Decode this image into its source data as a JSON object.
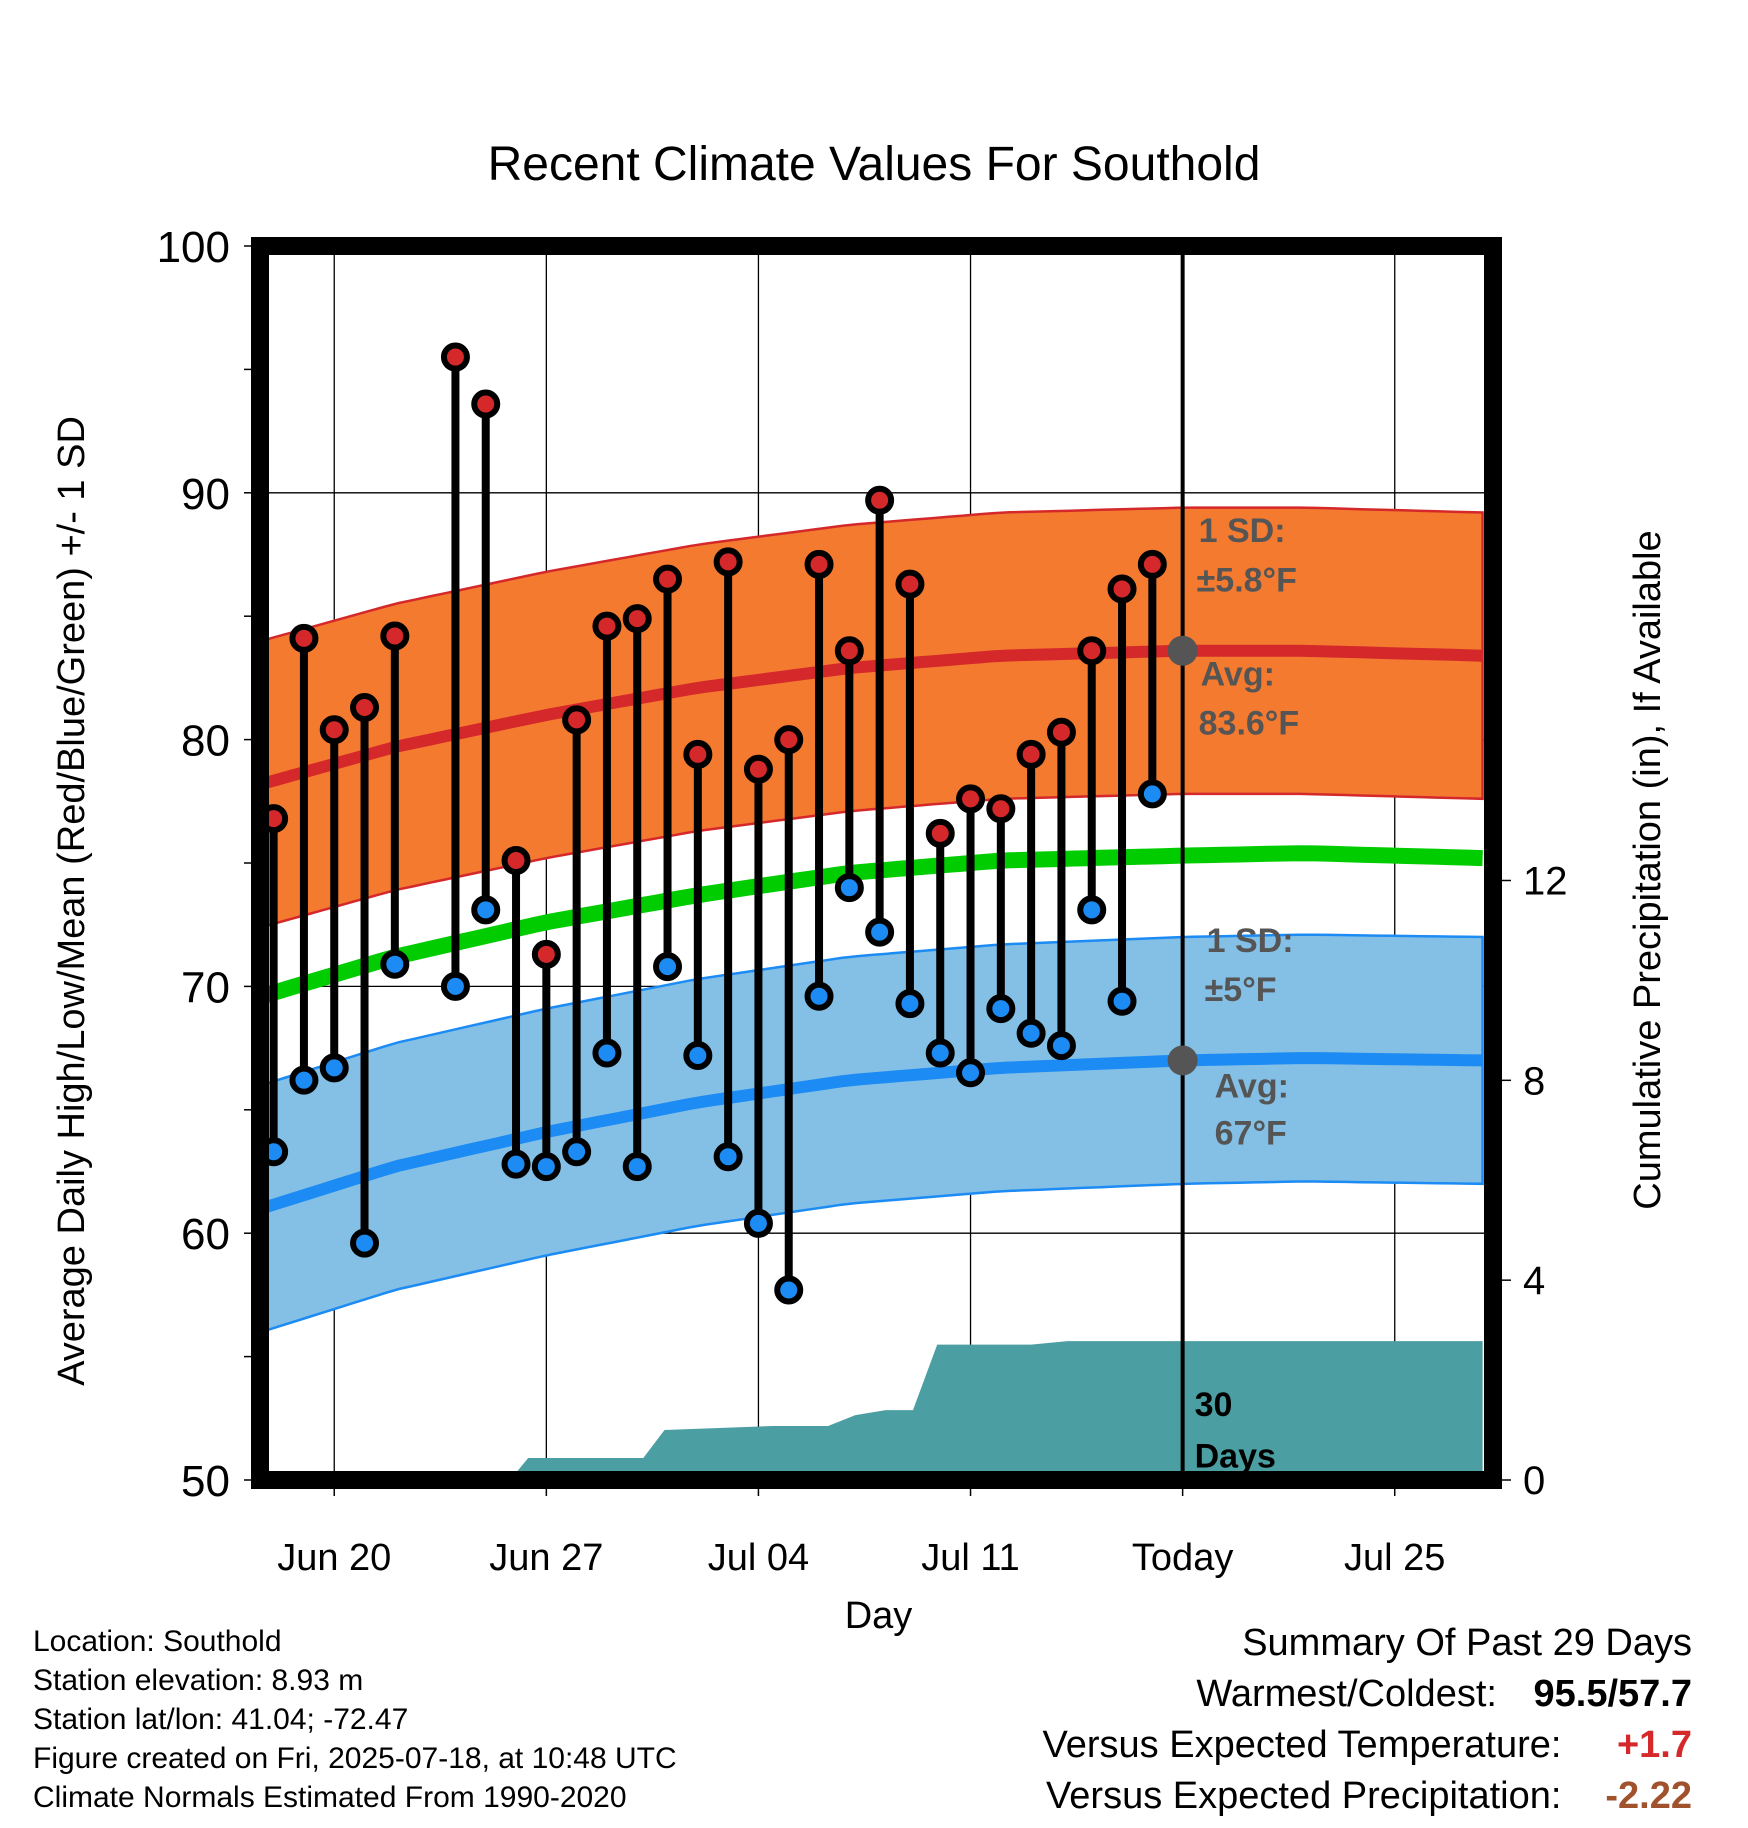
{
  "chart_data": {
    "type": "line",
    "title": "Recent Climate Values For Southold",
    "xlabel": "Day",
    "ylabel": "Average Daily High/Low/Mean (Red/Blue/Green) +/- 1 SD",
    "y2label": "Cumulative Precipitation (in), If Available",
    "ylim": [
      50,
      100
    ],
    "y2lim": [
      0,
      24.7
    ],
    "y_ticks": [
      "50",
      "60",
      "70",
      "80",
      "90",
      "100"
    ],
    "y2_ticks": [
      "0",
      "4",
      "8",
      "12"
    ],
    "x_ticks": [
      {
        "label": "Jun 20",
        "day": 3
      },
      {
        "label": "Jun 27",
        "day": 10
      },
      {
        "label": "Jul 04",
        "day": 17
      },
      {
        "label": "Jul 11",
        "day": 24
      },
      {
        "label": "Today",
        "day": 31
      },
      {
        "label": "Jul 25",
        "day": 38
      }
    ],
    "start_date": "2025-06-17",
    "x_range": [
      0.6,
      40.9
    ],
    "today_day": 31,
    "grid": true,
    "colors": {
      "high_band": "#f47a30",
      "high_line": "#d4282a",
      "low_band": "#84c0e6",
      "low_line": "#1c8bf4",
      "mean_line": "#00cc00",
      "precip": "#4b9ea2",
      "avg_dot": "#555555",
      "annotation": "#555555"
    },
    "series": [
      {
        "name": "Daily High",
        "x": [
          1,
          2,
          3,
          4,
          5,
          7,
          8,
          9,
          10,
          11,
          12,
          13,
          14,
          15,
          16,
          17,
          18,
          19,
          20,
          21,
          22,
          23,
          24,
          25,
          26,
          27,
          28,
          29,
          30
        ],
        "values": [
          76.8,
          84.1,
          80.4,
          81.3,
          84.2,
          95.5,
          93.6,
          75.1,
          71.3,
          80.8,
          84.6,
          84.9,
          86.5,
          79.4,
          87.2,
          78.8,
          80.0,
          87.1,
          83.6,
          89.7,
          86.3,
          76.2,
          77.6,
          77.2,
          79.4,
          80.3,
          83.6,
          86.1,
          87.1
        ]
      },
      {
        "name": "Daily Low",
        "x": [
          1,
          2,
          3,
          4,
          5,
          7,
          8,
          9,
          10,
          11,
          12,
          13,
          14,
          15,
          16,
          17,
          18,
          19,
          20,
          21,
          22,
          23,
          24,
          25,
          26,
          27,
          28,
          29,
          30
        ],
        "values": [
          63.3,
          66.2,
          66.7,
          59.6,
          70.9,
          70.0,
          73.1,
          62.8,
          62.7,
          63.3,
          67.3,
          62.7,
          70.8,
          67.2,
          63.1,
          60.4,
          57.7,
          69.6,
          74.0,
          72.2,
          69.3,
          67.3,
          66.5,
          69.1,
          68.1,
          67.6,
          73.1,
          69.4,
          77.8
        ]
      },
      {
        "name": "Normal High",
        "x": [
          0.6,
          5,
          10,
          15,
          20,
          25,
          31,
          35,
          40.9
        ],
        "values": [
          78.2,
          79.7,
          81.0,
          82.1,
          82.9,
          83.4,
          83.6,
          83.6,
          83.4
        ]
      },
      {
        "name": "Normal Low",
        "x": [
          0.6,
          5,
          10,
          15,
          20,
          25,
          31,
          35,
          40.9
        ],
        "values": [
          61.0,
          62.7,
          64.1,
          65.3,
          66.2,
          66.7,
          67.0,
          67.1,
          67.0
        ]
      },
      {
        "name": "Normal Mean",
        "x": [
          0.6,
          5,
          10,
          15,
          20,
          25,
          31,
          35,
          40.9
        ],
        "values": [
          69.6,
          71.2,
          72.6,
          73.7,
          74.6,
          75.1,
          75.3,
          75.4,
          75.2
        ]
      },
      {
        "name": "Cumulative Precipitation",
        "x": [
          0.6,
          8.8,
          9.4,
          13.2,
          13.9,
          17.5,
          19.3,
          20.2,
          21.2,
          22.1,
          22.9,
          26.0,
          27.2,
          40.9
        ],
        "values": [
          0,
          0,
          0.44,
          0.44,
          1.0,
          1.08,
          1.08,
          1.3,
          1.4,
          1.4,
          2.71,
          2.71,
          2.78,
          2.78
        ]
      }
    ],
    "sd_high": 5.8,
    "sd_low": 5.0,
    "annotations": {
      "high_sd_title": "1 SD:",
      "high_sd_value": "±5.8°F",
      "high_avg_title": "Avg:",
      "high_avg_value": "83.6°F",
      "low_sd_title": "1 SD:",
      "low_sd_value": "±5°F",
      "low_avg_title": "Avg:",
      "low_avg_value": "67°F",
      "days_line1": "30",
      "days_line2": "Days"
    }
  },
  "footer": {
    "location": "Location: Southold",
    "elevation": "Station elevation: 8.93 m",
    "latlon": "Station lat/lon: 41.04; -72.47",
    "created": "Figure created on Fri, 2025-07-18, at 10:48 UTC",
    "normals": "Climate Normals Estimated From 1990-2020"
  },
  "summary": {
    "title": "Summary Of Past 29 Days",
    "warm_cold_label": "Warmest/Coldest:",
    "warm_cold_value": "95.5/57.7",
    "temp_label": "Versus Expected Temperature:",
    "temp_value": "+1.7",
    "temp_color": "#d4282a",
    "precip_label": "Versus Expected Precipitation:",
    "precip_value": "-2.22",
    "precip_color": "#a0522d"
  }
}
